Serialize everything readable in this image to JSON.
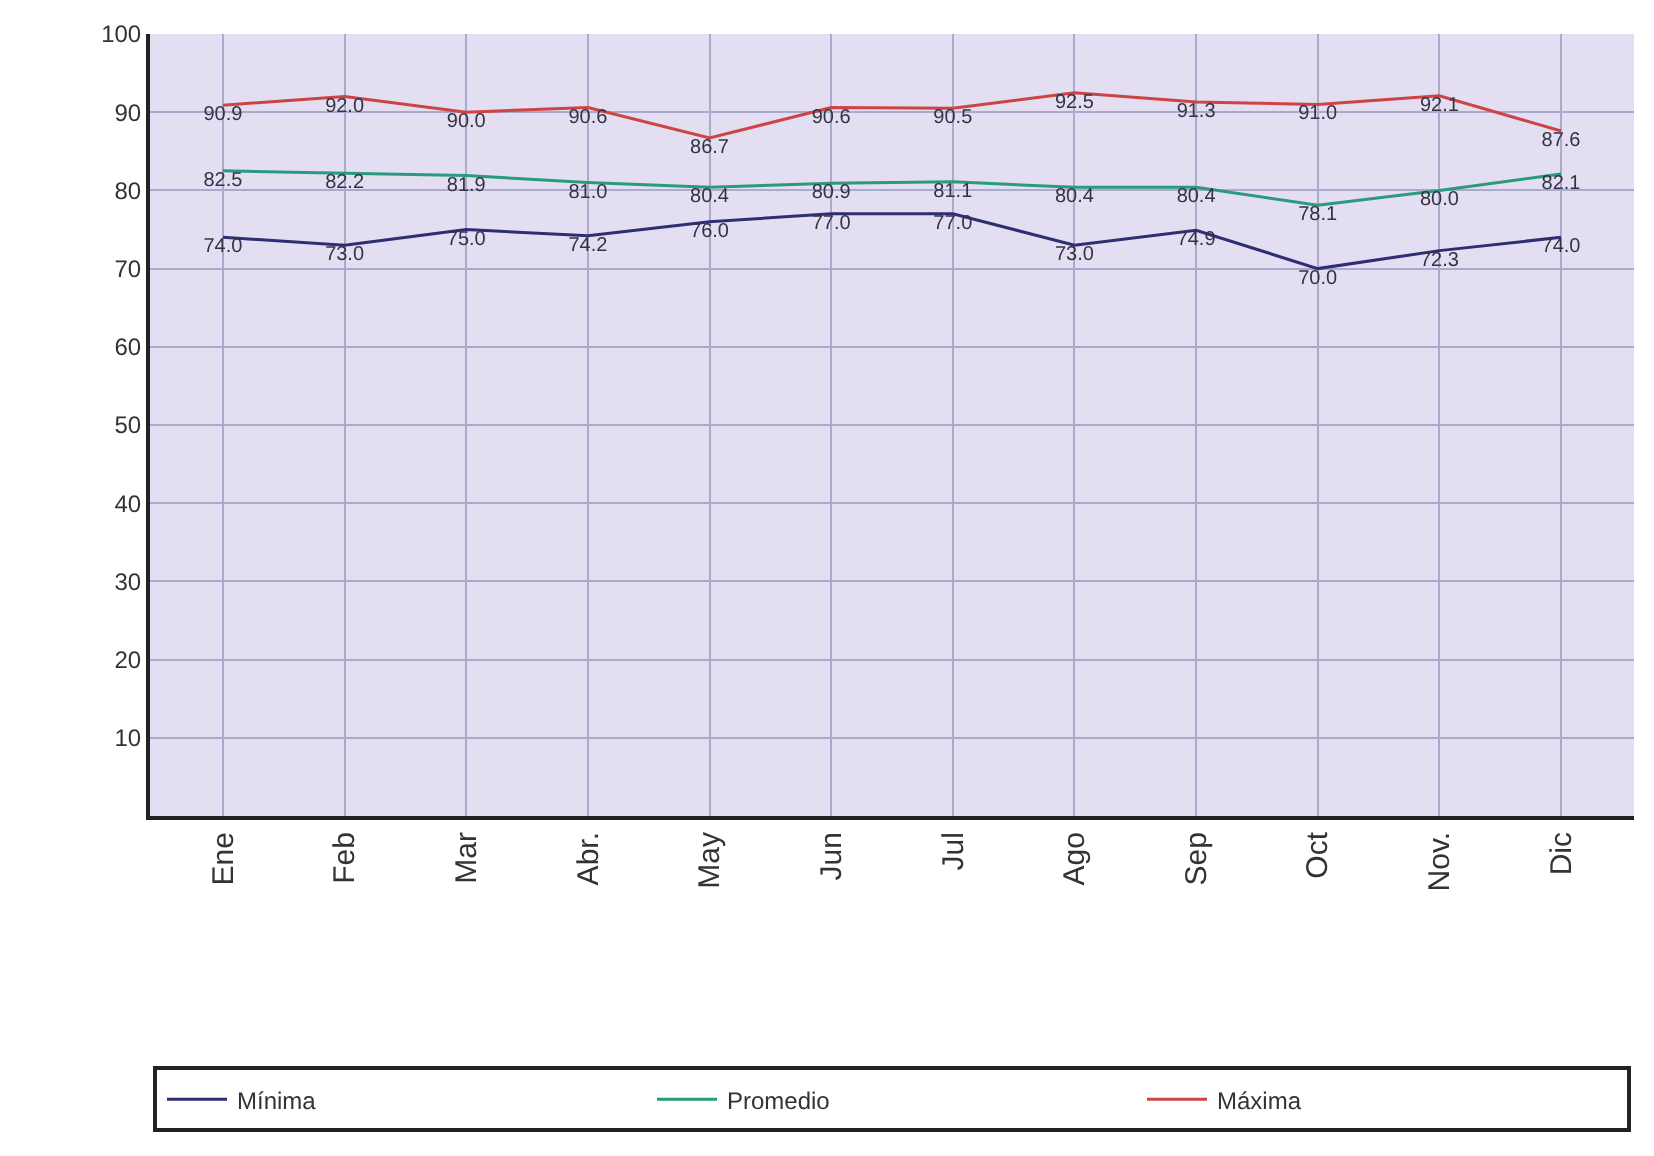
{
  "chart_data": {
    "type": "line",
    "categories": [
      "Ene",
      "Feb",
      "Mar",
      "Abr.",
      "May",
      "Jun",
      "Jul",
      "Ago",
      "Sep",
      "Oct",
      "Nov.",
      "Dic"
    ],
    "series": [
      {
        "name": "Mínima",
        "color": "#2e2e72",
        "values": [
          74,
          73,
          75,
          74.2,
          76,
          77,
          77,
          73,
          74.9,
          70,
          72.3,
          74
        ],
        "value_labels": [
          "74.0",
          "73.0",
          "75.0",
          "74.2",
          "76.0",
          "77.0",
          "77.0",
          "73.0",
          "74.9",
          "70.0",
          "72.3",
          "74.0"
        ]
      },
      {
        "name": "Promedio",
        "color": "#2a9a7c",
        "values": [
          82.5,
          82.2,
          81.9,
          81,
          80.4,
          80.9,
          81.1,
          80.4,
          80.4,
          78.1,
          80,
          82.1
        ],
        "value_labels": [
          "82.5",
          "82.2",
          "81.9",
          "81.0",
          "80.4",
          "80.9",
          "81.1",
          "80.4",
          "80.4",
          "78.1",
          "80.0",
          "82.1"
        ]
      },
      {
        "name": "Máxima",
        "color": "#cc4444",
        "values": [
          90.9,
          92,
          90,
          90.6,
          86.7,
          90.6,
          90.5,
          92.5,
          91.3,
          91,
          92.1,
          87.6
        ],
        "value_labels": [
          "90.9",
          "92.0",
          "90.0",
          "90.6",
          "86.7",
          "90.6",
          "90.5",
          "92.5",
          "91.3",
          "91.0",
          "92.1",
          "87.6"
        ]
      }
    ],
    "ylim": [
      0,
      100
    ],
    "yticks": [
      10,
      20,
      30,
      40,
      50,
      60,
      70,
      80,
      90,
      100
    ],
    "grid": true,
    "legend": "bottom",
    "marker": "none",
    "line_style": "solid"
  }
}
